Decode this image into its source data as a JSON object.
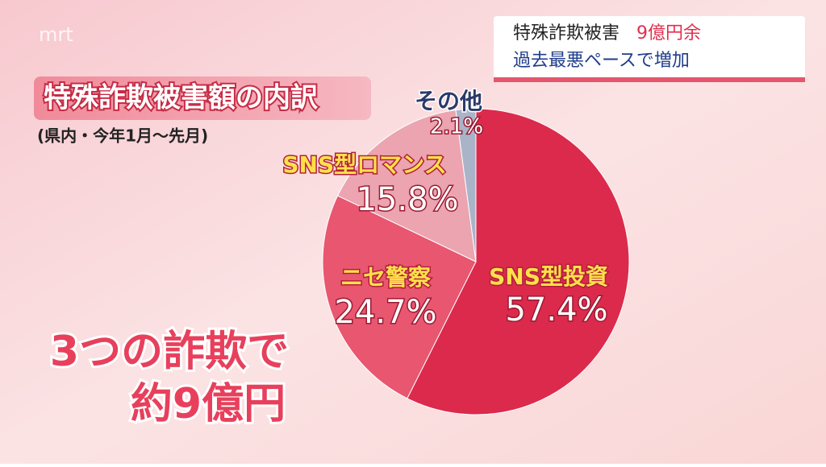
{
  "chart_data": {
    "type": "pie",
    "title": "特殊詐欺被害額の内訳",
    "subtitle": "(県内・今年1月～先月)",
    "categories": [
      "SNS型投資",
      "ニセ警察",
      "SNS型ロマンス",
      "その他"
    ],
    "values": [
      57.4,
      24.7,
      15.8,
      2.1
    ],
    "value_labels": [
      "57.4%",
      "24.7%",
      "15.8%",
      "2.1%"
    ],
    "colors": [
      "#dc2a4c",
      "#e9566f",
      "#eba4b0",
      "#a9b4c9"
    ],
    "annotation": [
      "3つの詐欺で",
      "約9億円"
    ],
    "headline": {
      "line1": [
        "特殊詐欺被害",
        "9億円余"
      ],
      "line2": "過去最悪ペースで増加"
    },
    "logo": "mrt"
  }
}
